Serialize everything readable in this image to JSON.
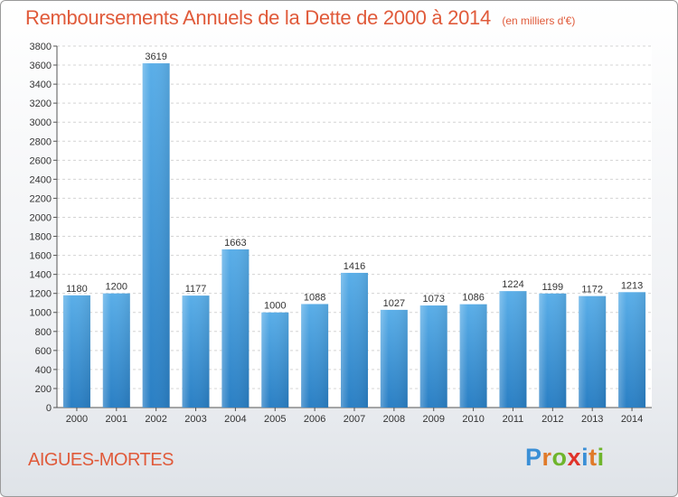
{
  "header": {
    "title": "Remboursements Annuels de la Dette de 2000 à 2014",
    "subtitle": "(en milliers d'€)"
  },
  "footer": {
    "city": "AIGUES-MORTES",
    "logo_letters": [
      "P",
      "r",
      "o",
      "x",
      "i",
      "t",
      "i"
    ],
    "logo_colors": [
      "#3a8fd6",
      "#e07a2a",
      "#6fb52c",
      "#e0332a",
      "#3a8fd6",
      "#e07a2a",
      "#6fb52c"
    ]
  },
  "chart_data": {
    "type": "bar",
    "title": "Remboursements Annuels de la Dette de 2000 à 2014",
    "categories": [
      "2000",
      "2001",
      "2002",
      "2003",
      "2004",
      "2005",
      "2006",
      "2007",
      "2008",
      "2009",
      "2010",
      "2011",
      "2012",
      "2013",
      "2014"
    ],
    "values": [
      1180,
      1200,
      3619,
      1177,
      1663,
      1000,
      1088,
      1416,
      1027,
      1073,
      1086,
      1224,
      1199,
      1172,
      1213
    ],
    "ylim": [
      0,
      3800
    ],
    "ytick_step": 200,
    "grid": true,
    "bar_color": "#3d9be0",
    "xlabel": "",
    "ylabel": ""
  }
}
